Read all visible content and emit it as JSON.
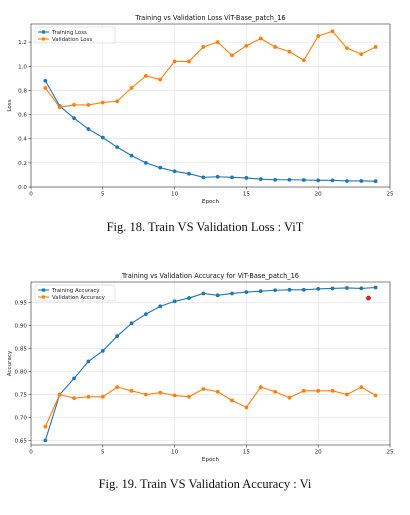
{
  "captions": {
    "fig18": "Fig. 18.  Train VS Validation Loss : ViT",
    "fig19": "Fig. 19.  Train VS Validation Accuracy : Vi"
  },
  "colors": {
    "train": "#1f77b4",
    "val": "#ff7f0e",
    "marker": "#d62728",
    "grid": "#d9d9d9"
  },
  "chart_data": [
    {
      "type": "line",
      "title": "Training vs Validation Loss ViT-Base_patch_16",
      "xlabel": "Epoch",
      "ylabel": "Loss",
      "xlim": [
        0,
        25
      ],
      "ylim": [
        0,
        1.35
      ],
      "xticks": [
        0,
        5,
        10,
        15,
        20,
        25
      ],
      "yticks": [
        0.0,
        0.2,
        0.4,
        0.6,
        0.8,
        1.0,
        1.2
      ],
      "ytick_decimals": 1,
      "grid": true,
      "legend": "top-left",
      "x": [
        1,
        2,
        3,
        4,
        5,
        6,
        7,
        8,
        9,
        10,
        11,
        12,
        13,
        14,
        15,
        16,
        17,
        18,
        19,
        20,
        21,
        22,
        23,
        24
      ],
      "series": [
        {
          "name": "Training Loss",
          "color": "#1f77b4",
          "values": [
            0.88,
            0.67,
            0.57,
            0.48,
            0.41,
            0.33,
            0.26,
            0.2,
            0.16,
            0.13,
            0.11,
            0.08,
            0.085,
            0.08,
            0.075,
            0.065,
            0.06,
            0.06,
            0.058,
            0.055,
            0.055,
            0.05,
            0.05,
            0.048
          ]
        },
        {
          "name": "Validation Loss",
          "color": "#ff7f0e",
          "values": [
            0.82,
            0.66,
            0.68,
            0.68,
            0.7,
            0.71,
            0.82,
            0.92,
            0.89,
            1.04,
            1.04,
            1.16,
            1.2,
            1.09,
            1.17,
            1.23,
            1.16,
            1.12,
            1.05,
            1.25,
            1.29,
            1.15,
            1.1,
            1.16
          ]
        }
      ]
    },
    {
      "type": "line",
      "title": "Training vs Validation Accuracy for ViT-Base_patch_16",
      "xlabel": "Epoch",
      "ylabel": "Accuracy",
      "xlim": [
        0,
        25
      ],
      "ylim": [
        0.64,
        0.995
      ],
      "xticks": [
        0,
        5,
        10,
        15,
        20,
        25
      ],
      "yticks": [
        0.65,
        0.7,
        0.75,
        0.8,
        0.85,
        0.9,
        0.95
      ],
      "ytick_decimals": 2,
      "grid": true,
      "legend": "top-left",
      "x": [
        1,
        2,
        3,
        4,
        5,
        6,
        7,
        8,
        9,
        10,
        11,
        12,
        13,
        14,
        15,
        16,
        17,
        18,
        19,
        20,
        21,
        22,
        23,
        24
      ],
      "series": [
        {
          "name": "Training Accuracy",
          "color": "#1f77b4",
          "values": [
            0.65,
            0.75,
            0.785,
            0.822,
            0.845,
            0.877,
            0.905,
            0.925,
            0.942,
            0.953,
            0.96,
            0.97,
            0.966,
            0.97,
            0.973,
            0.975,
            0.977,
            0.978,
            0.978,
            0.98,
            0.981,
            0.982,
            0.981,
            0.983
          ]
        },
        {
          "name": "Validation Accuracy",
          "color": "#ff7f0e",
          "values": [
            0.68,
            0.75,
            0.742,
            0.745,
            0.745,
            0.766,
            0.758,
            0.75,
            0.754,
            0.748,
            0.745,
            0.762,
            0.756,
            0.737,
            0.722,
            0.766,
            0.756,
            0.743,
            0.758,
            0.758,
            0.758,
            0.75,
            0.766,
            0.748
          ]
        }
      ],
      "highlight_point": {
        "x": 23.5,
        "y": 0.96,
        "color": "#d62728"
      }
    }
  ]
}
